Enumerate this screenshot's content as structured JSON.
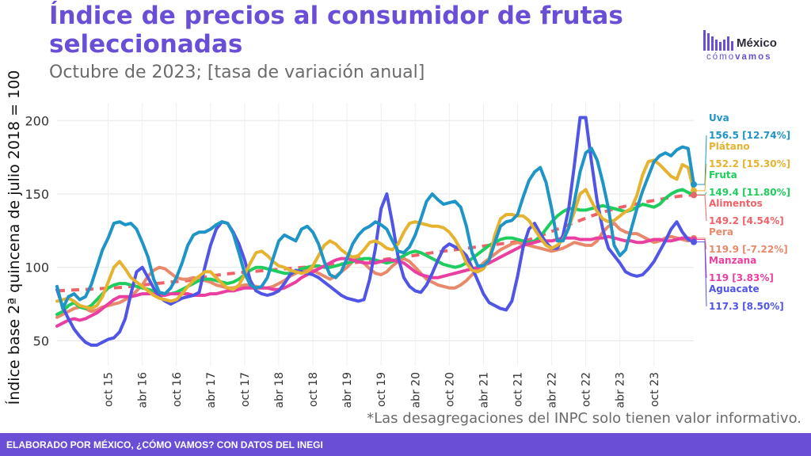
{
  "title": "Índice de precios al consumidor de frutas seleccionadas",
  "subtitle": "Octubre de 2023; [tasa de variación anual]",
  "ylabel": "Índice base 2ª quincena de julio 2018 = 100",
  "note": "*Las desagregaciones del INPC solo tienen valor informativo.",
  "footer": "ELABORADO POR MÉXICO, ¿CÓMO VAMOS? CON DATOS DEL INEGI",
  "logo": {
    "name": "México",
    "tag_light": "cómo",
    "tag_bold": "vamos"
  },
  "chart_data": {
    "type": "line",
    "title": "Índice de precios al consumidor de frutas seleccionadas",
    "subtitle": "Octubre de 2023; [tasa de variación anual]",
    "ylabel": "Índice base 2ª quincena de julio 2018 = 100",
    "xlabel": "",
    "ylim": [
      33,
      212
    ],
    "yticks": [
      50,
      100,
      150,
      200
    ],
    "x_tick_labels": [
      "oct 15",
      "abr 16",
      "oct 16",
      "abr 17",
      "oct 17",
      "abr 18",
      "oct 18",
      "abr 19",
      "oct 19",
      "abr 20",
      "oct 20",
      "abr 21",
      "oct 21",
      "abr 22",
      "oct 22",
      "abr 23",
      "oct 23"
    ],
    "x_start": "2015-01",
    "x_end": "2023-10",
    "grid": true,
    "legend": "end-labels-right",
    "series": [
      {
        "name": "Alimentos",
        "color": "#f0626a",
        "dashed": true,
        "end_label": "149.2 [4.54%]",
        "values": [
          84,
          84.2,
          84.4,
          84.6,
          84.8,
          85,
          85.2,
          85.4,
          85.6,
          85.8,
          86,
          86.3,
          86.6,
          87,
          87.5,
          88,
          88.4,
          88.8,
          89.2,
          89.6,
          90,
          90.3,
          90.6,
          91,
          91.8,
          92.6,
          93.3,
          94,
          94.6,
          95.1,
          95.6,
          96,
          96.4,
          96.8,
          97.1,
          97.4,
          97.7,
          98,
          98.3,
          98.6,
          99,
          99.3,
          99.6,
          99.9,
          100.2,
          100.5,
          100.8,
          101.1,
          101.5,
          101.9,
          102.3,
          102.7,
          103.1,
          103.5,
          103.9,
          104.3,
          104.8,
          105.2,
          105.6,
          106,
          106.5,
          107,
          107.6,
          108.2,
          108.8,
          109.4,
          110,
          110.5,
          111,
          111.5,
          112,
          112.5,
          113,
          113.5,
          114,
          114.5,
          115,
          115.5,
          116,
          116.5,
          117,
          117.6,
          118.2,
          118.8,
          120,
          121.5,
          123,
          124.5,
          126,
          127.5,
          129,
          130.5,
          132,
          133.5,
          135,
          136.3,
          137.5,
          138.7,
          139.8,
          140.8,
          141.7,
          142.5,
          143.3,
          144.1,
          144.9,
          145.6,
          146.3,
          147,
          147.6,
          148.2,
          148.7,
          149.2,
          149.2
        ]
      },
      {
        "name": "Pera",
        "color": "#e9896b",
        "end_label": "119.9 [-7.22%]",
        "values": [
          66,
          68,
          70,
          72,
          73,
          72,
          70,
          71,
          73,
          74,
          75,
          76,
          78,
          80,
          84,
          88,
          94,
          98,
          100,
          99,
          96,
          93,
          92,
          92,
          93,
          92,
          91,
          90,
          88,
          87,
          86,
          86,
          87,
          88,
          88,
          87,
          86,
          86,
          87,
          89,
          91,
          94,
          96,
          98,
          99,
          98,
          96,
          94,
          92,
          94,
          97,
          100,
          104,
          107,
          103,
          99,
          96,
          95,
          97,
          101,
          104,
          106,
          104,
          100,
          96,
          92,
          90,
          88,
          87,
          86,
          86,
          88,
          91,
          95,
          99,
          103,
          106,
          109,
          112,
          114,
          116,
          117,
          116,
          115,
          114,
          113,
          112,
          111,
          112,
          113,
          115,
          117,
          116,
          115,
          115,
          118,
          124,
          128,
          130,
          126,
          124,
          123,
          123,
          121,
          119,
          117,
          118,
          120,
          121,
          120,
          119,
          118,
          119.9
        ]
      },
      {
        "name": "Fruta",
        "color": "#1fcd5e",
        "end_label": "149.4 [11.80%]",
        "values": [
          68,
          70,
          74,
          76,
          73,
          72,
          74,
          78,
          82,
          86,
          88,
          89,
          89,
          88,
          87,
          86,
          85,
          84,
          83,
          82,
          82,
          83,
          85,
          87,
          89,
          91,
          92,
          92,
          91,
          90,
          89,
          90,
          92,
          95,
          98,
          100,
          100,
          99,
          98,
          97,
          96,
          96,
          97,
          99,
          100,
          101,
          101,
          100,
          100,
          101,
          102,
          103,
          104,
          105,
          106,
          106,
          105,
          104,
          103,
          104,
          106,
          108,
          110,
          111,
          110,
          108,
          106,
          104,
          102,
          101,
          100,
          101,
          103,
          106,
          109,
          112,
          115,
          117,
          119,
          120,
          120,
          119,
          118,
          117,
          118,
          121,
          126,
          131,
          135,
          138,
          140,
          140,
          139,
          139,
          140,
          141,
          142,
          141,
          140,
          139,
          138,
          139,
          141,
          143,
          142,
          141,
          143,
          147,
          150,
          152,
          153,
          151,
          149.4
        ]
      },
      {
        "name": "Manzana",
        "color": "#ea3fa0",
        "end_label": "119 [3.83%]",
        "values": [
          60,
          62,
          64,
          65,
          64,
          65,
          67,
          69,
          72,
          75,
          78,
          80,
          80,
          80,
          81,
          82,
          82,
          82,
          81,
          81,
          82,
          82,
          82,
          82,
          81,
          81,
          81,
          82,
          82,
          83,
          84,
          84,
          85,
          86,
          86,
          86,
          86,
          86,
          85,
          85,
          86,
          88,
          90,
          93,
          95,
          97,
          99,
          101,
          103,
          105,
          106,
          106,
          105,
          104,
          103,
          103,
          103,
          104,
          105,
          105,
          104,
          103,
          100,
          97,
          95,
          94,
          93,
          93,
          94,
          95,
          96,
          97,
          98,
          99,
          100,
          101,
          103,
          105,
          107,
          109,
          111,
          113,
          115,
          116,
          117,
          118,
          118,
          118,
          119,
          120,
          120,
          120,
          119,
          119,
          119,
          120,
          120,
          121,
          120,
          119,
          118,
          118,
          117,
          117,
          118,
          119,
          119,
          118,
          118,
          119,
          120,
          120,
          119
        ]
      },
      {
        "name": "Aguacate",
        "color": "#5155e6",
        "end_label": "117.3 [8.50%]",
        "values": [
          85,
          73,
          65,
          58,
          53,
          49,
          47,
          47,
          49,
          51,
          52,
          56,
          65,
          82,
          97,
          100,
          93,
          86,
          80,
          77,
          75,
          77,
          79,
          80,
          81,
          83,
          100,
          115,
          126,
          131,
          130,
          124,
          116,
          105,
          91,
          84,
          82,
          81,
          82,
          84,
          89,
          95,
          98,
          97,
          96,
          95,
          93,
          90,
          87,
          84,
          81,
          79,
          78,
          77,
          78,
          92,
          113,
          140,
          150,
          130,
          107,
          93,
          87,
          84,
          83,
          88,
          96,
          105,
          113,
          116,
          114,
          112,
          108,
          100,
          91,
          82,
          76,
          74,
          72,
          71,
          77,
          94,
          114,
          126,
          130,
          123,
          117,
          113,
          113,
          122,
          140,
          170,
          202,
          202,
          172,
          145,
          126,
          113,
          108,
          103,
          97,
          95,
          94,
          95,
          99,
          104,
          111,
          118,
          126,
          131,
          124,
          119,
          117.3
        ]
      },
      {
        "name": "Plátano",
        "color": "#e6b330",
        "end_label": "152.2 [15.30%]",
        "values": [
          77,
          78,
          79,
          77,
          74,
          73,
          72,
          74,
          80,
          90,
          100,
          104,
          99,
          93,
          90,
          87,
          84,
          81,
          79,
          78,
          77,
          78,
          82,
          87,
          91,
          94,
          97,
          97,
          93,
          89,
          86,
          85,
          88,
          95,
          103,
          110,
          111,
          108,
          104,
          101,
          100,
          98,
          97,
          96,
          97,
          101,
          108,
          115,
          118,
          116,
          112,
          109,
          107,
          108,
          112,
          117,
          118,
          116,
          113,
          112,
          116,
          124,
          130,
          131,
          130,
          129,
          128,
          128,
          127,
          124,
          119,
          112,
          103,
          98,
          97,
          99,
          106,
          122,
          133,
          136,
          136,
          135,
          135,
          132,
          126,
          120,
          115,
          113,
          115,
          119,
          127,
          138,
          150,
          153,
          145,
          138,
          133,
          131,
          132,
          135,
          138,
          140,
          149,
          163,
          172,
          173,
          170,
          166,
          162,
          160,
          170,
          168,
          152.2
        ]
      },
      {
        "name": "Uva",
        "color": "#1f94c6",
        "end_label": "156.5 [12.74%]",
        "values": [
          87,
          72,
          80,
          82,
          78,
          80,
          88,
          100,
          112,
          120,
          130,
          131,
          129,
          130,
          126,
          117,
          107,
          92,
          83,
          82,
          86,
          93,
          103,
          115,
          122,
          124,
          124,
          126,
          129,
          131,
          130,
          123,
          110,
          96,
          88,
          86,
          87,
          93,
          106,
          118,
          122,
          120,
          118,
          126,
          128,
          124,
          116,
          104,
          95,
          93,
          97,
          106,
          116,
          122,
          126,
          128,
          131,
          129,
          126,
          118,
          111,
          110,
          114,
          122,
          133,
          145,
          150,
          146,
          143,
          144,
          145,
          141,
          128,
          110,
          101,
          101,
          105,
          117,
          128,
          131,
          132,
          136,
          148,
          159,
          165,
          168,
          158,
          140,
          118,
          118,
          127,
          145,
          165,
          178,
          181,
          173,
          158,
          140,
          115,
          108,
          112,
          126,
          140,
          152,
          162,
          172,
          176,
          178,
          176,
          180,
          182,
          181,
          156.5
        ]
      }
    ]
  }
}
